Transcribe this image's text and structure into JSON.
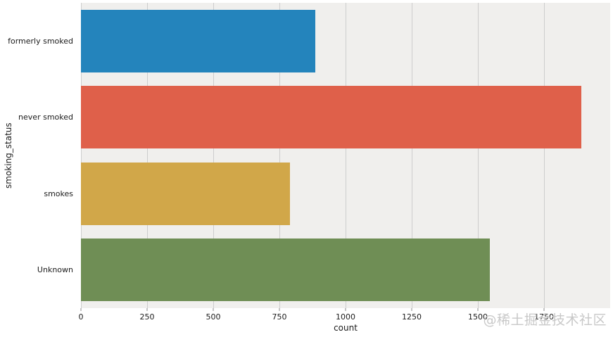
{
  "chart_data": {
    "type": "bar",
    "orientation": "horizontal",
    "title": "",
    "categories": [
      "formerly smoked",
      "never smoked",
      "smokes",
      "Unknown"
    ],
    "values": [
      885,
      1892,
      789,
      1544
    ],
    "bar_colors": [
      "#2484BC",
      "#DF604A",
      "#D1A749",
      "#6F8E55"
    ],
    "xlabel": "count",
    "ylabel": "smoking_status",
    "xlim": [
      0,
      2000
    ],
    "xticks": [
      0,
      250,
      500,
      750,
      1000,
      1250,
      1500,
      1750
    ],
    "grid": "vertical",
    "legend": "none",
    "plot_background": "#F0EFED",
    "grid_color": "#CDCDCD",
    "figure_background": "#FFFFFF"
  },
  "watermark": {
    "text": "@稀土掘金技术社区",
    "color": "#C6C6C6"
  }
}
